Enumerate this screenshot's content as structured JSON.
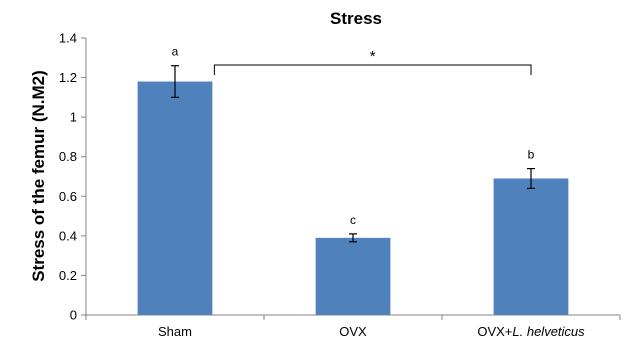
{
  "chart_data": {
    "type": "bar",
    "title": "Stress",
    "ylabel": "Stress of the femur (N.M2)",
    "xlabel": "",
    "categories": [
      {
        "plain": "Sham",
        "italic": "",
        "suffix": ""
      },
      {
        "plain": "OVX",
        "italic": "",
        "suffix": ""
      },
      {
        "plain": "OVX+",
        "italic": "L. helveticus",
        "suffix": ""
      }
    ],
    "values": [
      1.18,
      0.39,
      0.69
    ],
    "error": [
      0.08,
      0.02,
      0.05
    ],
    "significance_letters": [
      "a",
      "c",
      "b"
    ],
    "bracket": {
      "from": 0,
      "to": 2,
      "label": "*"
    },
    "ylim": [
      0,
      1.4
    ],
    "yticks": [
      "0",
      "0.2",
      "0.4",
      "0.6",
      "0.8",
      "1",
      "1.2",
      "1.4"
    ],
    "yticks_values": [
      0,
      0.2,
      0.4,
      0.6,
      0.8,
      1.0,
      1.2,
      1.4
    ],
    "grid": false,
    "legend": "none",
    "bar_color": "#4F81BD"
  }
}
